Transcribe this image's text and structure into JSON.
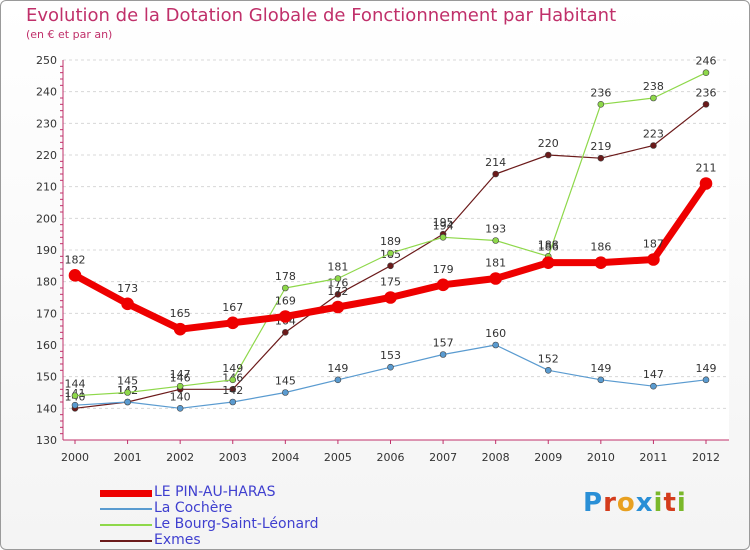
{
  "title": "Evolution de la Dotation Globale de Fonctionnement par Habitant",
  "subtitle": "(en € et par an)",
  "logo": {
    "letters": [
      "P",
      "r",
      "o",
      "x",
      "i",
      "t",
      "i"
    ],
    "colors": [
      "#2a8fd6",
      "#d43c1c",
      "#e8a020",
      "#2a8fd6",
      "#7ab82a",
      "#d43c1c",
      "#7ab82a"
    ]
  },
  "chart_data": {
    "type": "line",
    "x": [
      2000,
      2001,
      2002,
      2003,
      2004,
      2005,
      2006,
      2007,
      2008,
      2009,
      2010,
      2011,
      2012
    ],
    "ylim": [
      130,
      250
    ],
    "yticks": [
      130,
      140,
      150,
      160,
      170,
      180,
      190,
      200,
      210,
      220,
      230,
      240,
      250
    ],
    "grid": "horizontal",
    "legend_position": "bottom-left",
    "series": [
      {
        "name": "Exmes",
        "color": "#6b1a1a",
        "width": 1.2,
        "marker": 3,
        "values": [
          140,
          142,
          146,
          146,
          164,
          176,
          185,
          195,
          214,
          220,
          219,
          223,
          236
        ]
      },
      {
        "name": "La Cochère",
        "color": "#5a9bd0",
        "width": 1.2,
        "marker": 3,
        "values": [
          141,
          142,
          140,
          142,
          145,
          149,
          153,
          157,
          160,
          152,
          149,
          147,
          149
        ]
      },
      {
        "name": "Le Bourg-Saint-Léonard",
        "color": "#8ed84a",
        "width": 1.2,
        "marker": 3,
        "values": [
          144,
          145,
          147,
          149,
          178,
          181,
          189,
          194,
          193,
          188,
          236,
          238,
          246
        ]
      },
      {
        "name": "LE PIN-AU-HARAS",
        "color": "#ee0000",
        "width": 7,
        "marker": 6,
        "values": [
          182,
          173,
          165,
          167,
          169,
          172,
          175,
          179,
          181,
          186,
          186,
          187,
          211
        ]
      }
    ],
    "legend_order": [
      "LE PIN-AU-HARAS",
      "La Cochère",
      "Le Bourg-Saint-Léonard",
      "Exmes"
    ]
  }
}
